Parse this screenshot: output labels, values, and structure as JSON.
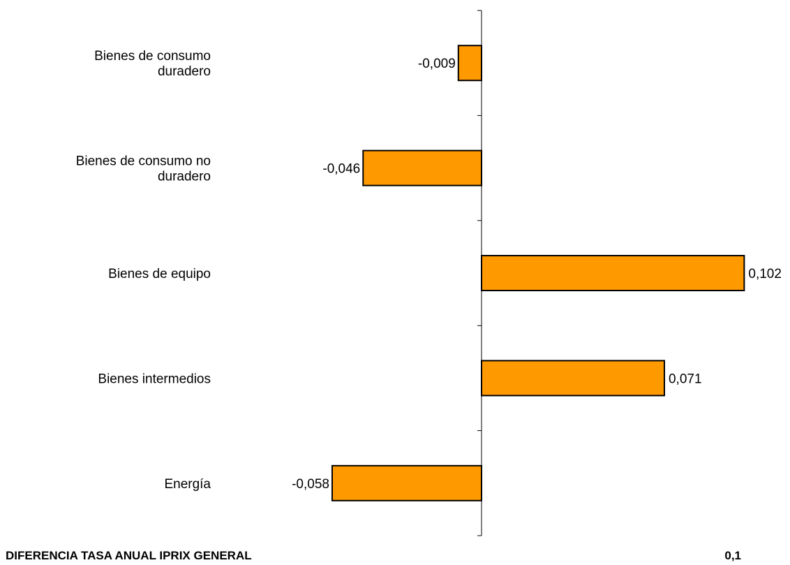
{
  "chart_data": {
    "type": "bar",
    "orientation": "horizontal",
    "categories": [
      "Bienes de consumo duradero",
      "Bienes de consumo no duradero",
      "Bienes de equipo",
      "Bienes intermedios",
      "Energía"
    ],
    "category_lines": [
      [
        "Bienes de consumo",
        "duradero"
      ],
      [
        "Bienes de consumo no",
        "duradero"
      ],
      [
        "Bienes de equipo"
      ],
      [
        "Bienes intermedios"
      ],
      [
        "Energía"
      ]
    ],
    "values": [
      -0.009,
      -0.046,
      0.102,
      0.071,
      -0.058
    ],
    "data_labels": [
      "-0,009",
      "-0,046",
      "0,102",
      "0,071",
      "-0,058"
    ],
    "bar_color": "#FF9900",
    "bar_stroke": "#000000",
    "xlim": [
      -0.111,
      0.119
    ],
    "grid": false,
    "legend": "none"
  },
  "footer": {
    "label": "DIFERENCIA TASA ANUAL IPRIX GENERAL",
    "value": "0,1"
  }
}
